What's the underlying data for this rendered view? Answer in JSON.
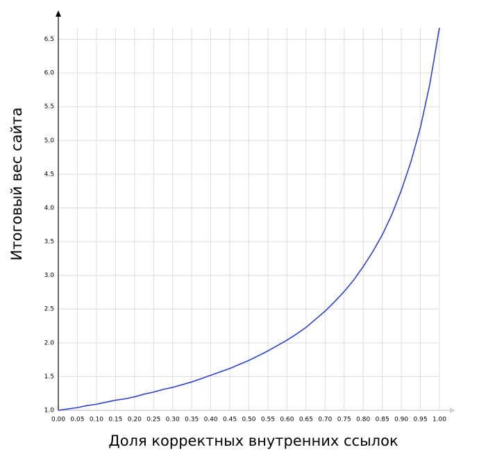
{
  "chart_data": {
    "type": "line",
    "x_label": "Доля корректных внутренних ссылок",
    "y_label": "Итоговый вес сайта",
    "x": [
      0,
      0.025,
      0.05,
      0.075,
      0.1,
      0.125,
      0.15,
      0.175,
      0.2,
      0.225,
      0.25,
      0.275,
      0.3,
      0.325,
      0.35,
      0.375,
      0.4,
      0.425,
      0.45,
      0.475,
      0.5,
      0.525,
      0.55,
      0.575,
      0.6,
      0.625,
      0.65,
      0.675,
      0.7,
      0.725,
      0.75,
      0.775,
      0.8,
      0.825,
      0.85,
      0.875,
      0.9,
      0.925,
      0.95,
      0.975,
      1
    ],
    "series": [
      {
        "color": "#2b3fd1",
        "values": [
          1.0,
          1.02,
          1.04,
          1.07,
          1.09,
          1.12,
          1.15,
          1.17,
          1.2,
          1.24,
          1.27,
          1.31,
          1.34,
          1.38,
          1.42,
          1.47,
          1.52,
          1.57,
          1.62,
          1.68,
          1.74,
          1.81,
          1.88,
          1.96,
          2.04,
          2.13,
          2.23,
          2.35,
          2.47,
          2.61,
          2.76,
          2.93,
          3.13,
          3.35,
          3.6,
          3.9,
          4.26,
          4.68,
          5.19,
          5.84,
          6.67
        ]
      }
    ],
    "xlim": [
      0,
      1
    ],
    "ylim": [
      1,
      6.67
    ],
    "xticks": [
      {
        "value": 0,
        "label": "0.00"
      },
      {
        "value": 0.05,
        "label": "0.05"
      },
      {
        "value": 0.1,
        "label": "0.10"
      },
      {
        "value": 0.15,
        "label": "0.15"
      },
      {
        "value": 0.2,
        "label": "0.20"
      },
      {
        "value": 0.25,
        "label": "0.25"
      },
      {
        "value": 0.3,
        "label": "0.30"
      },
      {
        "value": 0.35,
        "label": "0.35"
      },
      {
        "value": 0.4,
        "label": "0.40"
      },
      {
        "value": 0.45,
        "label": "0.45"
      },
      {
        "value": 0.5,
        "label": "0.50"
      },
      {
        "value": 0.55,
        "label": "0.55"
      },
      {
        "value": 0.6,
        "label": "0.60"
      },
      {
        "value": 0.65,
        "label": "0.65"
      },
      {
        "value": 0.7,
        "label": "0.70"
      },
      {
        "value": 0.75,
        "label": "0.75"
      },
      {
        "value": 0.8,
        "label": "0.80"
      },
      {
        "value": 0.85,
        "label": "0.85"
      },
      {
        "value": 0.9,
        "label": "0.90"
      },
      {
        "value": 0.95,
        "label": "0.95"
      },
      {
        "value": 1,
        "label": "1.00"
      }
    ],
    "yticks": [
      {
        "value": 1,
        "label": "1.0"
      },
      1.5,
      {
        "value": 2,
        "label": "2.0"
      },
      2.5,
      {
        "value": 3,
        "label": "3.0"
      },
      3.5,
      {
        "value": 4,
        "label": "4.0"
      },
      4.5,
      {
        "value": 5,
        "label": "5.0"
      },
      5.5,
      {
        "value": 6,
        "label": "6.0"
      },
      6.5
    ],
    "grid": true
  }
}
